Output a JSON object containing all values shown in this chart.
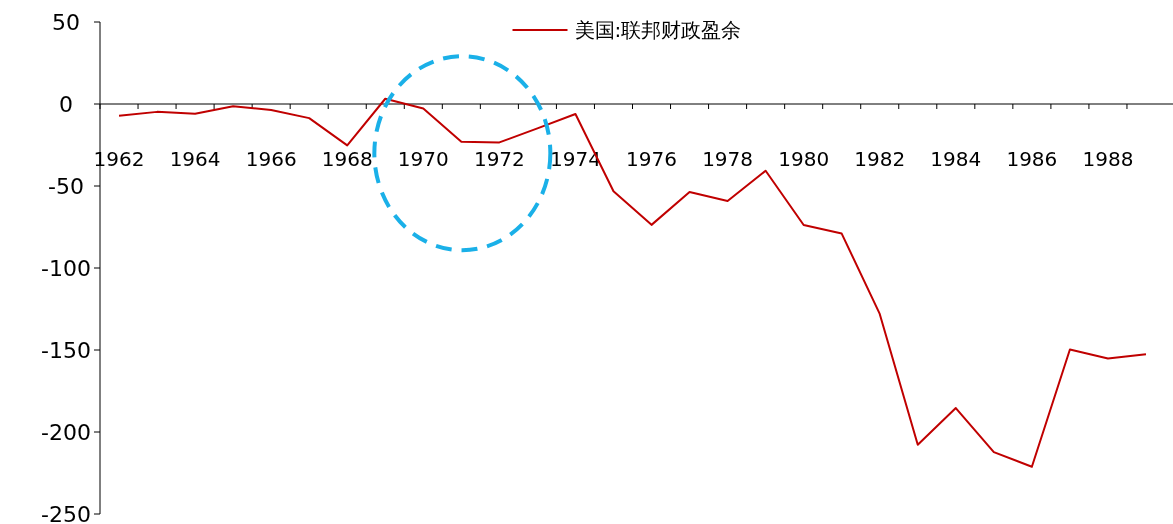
{
  "chart_data": {
    "type": "line",
    "categories": [
      "1962",
      null,
      "1964",
      null,
      "1966",
      null,
      "1968",
      null,
      "1970",
      null,
      "1972",
      null,
      "1974",
      null,
      "1976",
      null,
      "1978",
      null,
      "1980",
      null,
      "1982",
      null,
      "1984",
      null,
      "1986",
      null,
      "1988",
      null
    ],
    "series": [
      {
        "name": "美国:联邦财政盈余",
        "color": "#c00000",
        "values": [
          -7.1,
          -4.8,
          -5.9,
          -1.4,
          -3.7,
          -8.6,
          -25.2,
          3.2,
          -2.8,
          -23.0,
          -23.4,
          -14.9,
          -6.1,
          -53.2,
          -73.7,
          -53.7,
          -59.2,
          -40.7,
          -73.8,
          -79.0,
          -128.0,
          -207.8,
          -185.4,
          -212.3,
          -221.2,
          -149.7,
          -155.2,
          -152.6
        ]
      }
    ],
    "ylim": [
      -250,
      50
    ],
    "yticks": [
      50,
      0,
      -50,
      -100,
      -150,
      -200,
      -250
    ],
    "legend": "top",
    "grid": false,
    "marker": "none",
    "line_style": "solid"
  }
}
